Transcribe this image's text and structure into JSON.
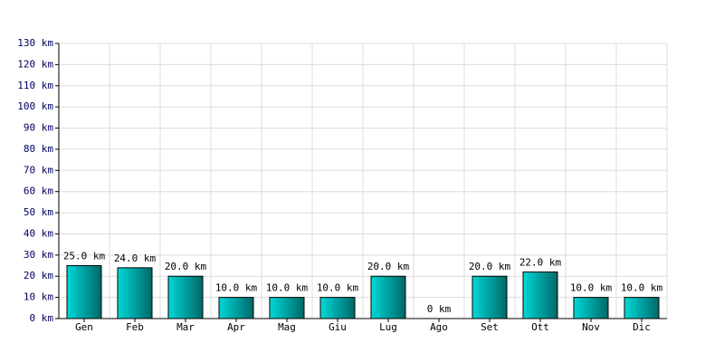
{
  "chart_data": {
    "type": "bar",
    "categories": [
      "Gen",
      "Feb",
      "Mar",
      "Apr",
      "Mag",
      "Giu",
      "Lug",
      "Ago",
      "Set",
      "Ott",
      "Nov",
      "Dic"
    ],
    "values": [
      25,
      24,
      20,
      10,
      10,
      10,
      20,
      0,
      20,
      22,
      10,
      10
    ],
    "value_labels": [
      "25.0 km",
      "24.0 km",
      "20.0 km",
      "10.0 km",
      "10.0 km",
      "10.0 km",
      "20.0 km",
      "0 km",
      "20.0 km",
      "22.0 km",
      "10.0 km",
      "10.0 km"
    ],
    "color": "#00d8d8",
    "ylim": [
      0,
      130
    ],
    "yticks": [
      {
        "value": 0,
        "label": "0 km"
      },
      {
        "value": 10,
        "label": "10 km"
      },
      {
        "value": 20,
        "label": "20 km"
      },
      {
        "value": 30,
        "label": "30 km"
      },
      {
        "value": 40,
        "label": "40 km"
      },
      {
        "value": 50,
        "label": "50 km"
      },
      {
        "value": 60,
        "label": "60 km"
      },
      {
        "value": 70,
        "label": "70 km"
      },
      {
        "value": 80,
        "label": "80 km"
      },
      {
        "value": 90,
        "label": "90 km"
      },
      {
        "value": 100,
        "label": "100 km"
      },
      {
        "value": 110,
        "label": "110 km"
      },
      {
        "value": 120,
        "label": "120 km"
      },
      {
        "value": 130,
        "label": "130 km"
      }
    ],
    "grid": true
  }
}
